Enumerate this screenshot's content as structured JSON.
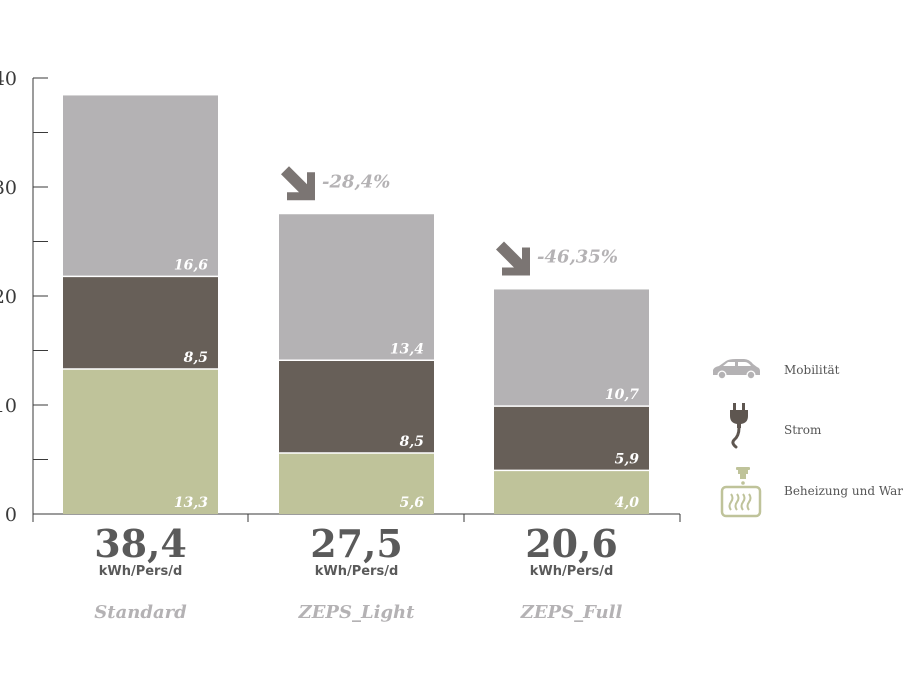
{
  "chart_data": {
    "type": "bar",
    "stacked": true,
    "ylim": [
      0,
      40
    ],
    "yticks": [
      "0",
      "10",
      "20",
      "30",
      "40"
    ],
    "categories": [
      "Standard",
      "ZEPS_Light",
      "ZEPS_Full"
    ],
    "series": [
      {
        "name": "Beheizung und War",
        "color": "#bfc39a",
        "values": [
          13.3,
          5.6,
          4.0
        ],
        "labels": [
          "13,3",
          "5,6",
          "4,0"
        ]
      },
      {
        "name": "Strom",
        "color": "#675f58",
        "values": [
          8.5,
          8.5,
          5.9
        ],
        "labels": [
          "8,5",
          "8,5",
          "5,9"
        ]
      },
      {
        "name": "Mobilität",
        "color": "#b4b2b4",
        "values": [
          16.6,
          13.4,
          10.7
        ],
        "labels": [
          "16,6",
          "13,4",
          "10,7"
        ]
      }
    ],
    "totals": [
      "38,4",
      "27,5",
      "20,6"
    ],
    "total_values": [
      38.4,
      27.5,
      20.6
    ],
    "unit": "kWh/Pers/d",
    "changes": [
      "",
      "-28,4%",
      "-46,35%"
    ],
    "legend": [
      {
        "label": "Mobilität",
        "icon": "car-icon"
      },
      {
        "label": "Strom",
        "icon": "plug-icon"
      },
      {
        "label": "Beheizung und War",
        "icon": "heating-icon"
      }
    ],
    "grid": false
  }
}
